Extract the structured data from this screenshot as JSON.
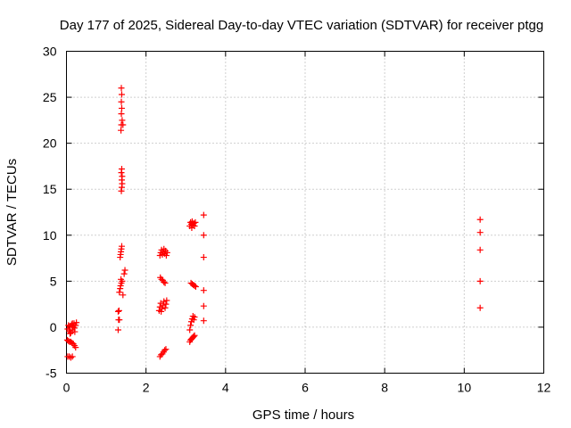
{
  "chart_data": {
    "type": "scatter",
    "title": "Day 177 of 2025, Sidereal Day-to-day VTEC variation (SDTVAR) for receiver ptgg",
    "xlabel": "GPS time / hours",
    "ylabel": "SDTVAR / TECUs",
    "xlim": [
      0,
      12
    ],
    "ylim": [
      -5,
      30
    ],
    "xticks": [
      0,
      2,
      4,
      6,
      8,
      10,
      12
    ],
    "yticks": [
      -5,
      0,
      5,
      10,
      15,
      20,
      25,
      30
    ],
    "grid": true,
    "marker": "+",
    "color": "#ff0000",
    "series": [
      {
        "name": "SDTVAR",
        "points": [
          [
            0.02,
            -1.4
          ],
          [
            0.05,
            -1.5
          ],
          [
            0.08,
            -1.6
          ],
          [
            0.11,
            -1.6
          ],
          [
            0.14,
            -1.7
          ],
          [
            0.17,
            -1.8
          ],
          [
            0.2,
            -2.0
          ],
          [
            0.23,
            -2.2
          ],
          [
            0.03,
            -3.2
          ],
          [
            0.07,
            -3.2
          ],
          [
            0.11,
            -3.3
          ],
          [
            0.15,
            -3.2
          ],
          [
            0.03,
            -0.2
          ],
          [
            0.05,
            0.2
          ],
          [
            0.07,
            -0.4
          ],
          [
            0.09,
            0.1
          ],
          [
            0.11,
            -0.6
          ],
          [
            0.13,
            0.3
          ],
          [
            0.15,
            -0.3
          ],
          [
            0.17,
            0.0
          ],
          [
            0.19,
            0.4
          ],
          [
            0.21,
            -0.5
          ],
          [
            0.23,
            0.2
          ],
          [
            0.25,
            0.5
          ],
          [
            0.09,
            -0.7
          ],
          [
            0.15,
            0.4
          ],
          [
            0.2,
            -0.1
          ],
          [
            1.3,
            -0.3
          ],
          [
            1.31,
            0.8
          ],
          [
            1.33,
            0.8
          ],
          [
            1.3,
            1.7
          ],
          [
            1.32,
            1.8
          ],
          [
            1.33,
            3.8
          ],
          [
            1.35,
            4.2
          ],
          [
            1.36,
            4.5
          ],
          [
            1.38,
            4.8
          ],
          [
            1.4,
            5.0
          ],
          [
            1.37,
            5.2
          ],
          [
            1.42,
            3.5
          ],
          [
            1.45,
            5.8
          ],
          [
            1.47,
            6.2
          ],
          [
            1.35,
            7.6
          ],
          [
            1.36,
            7.9
          ],
          [
            1.37,
            8.2
          ],
          [
            1.38,
            8.5
          ],
          [
            1.39,
            8.8
          ],
          [
            1.38,
            14.8
          ],
          [
            1.39,
            15.2
          ],
          [
            1.4,
            15.6
          ],
          [
            1.39,
            16.0
          ],
          [
            1.4,
            16.4
          ],
          [
            1.38,
            16.8
          ],
          [
            1.39,
            17.2
          ],
          [
            1.37,
            21.4
          ],
          [
            1.38,
            22.0
          ],
          [
            1.4,
            22.5
          ],
          [
            1.42,
            22.0
          ],
          [
            1.38,
            23.2
          ],
          [
            1.39,
            23.8
          ],
          [
            1.38,
            24.5
          ],
          [
            1.39,
            25.3
          ],
          [
            1.38,
            26.0
          ],
          [
            2.35,
            -3.2
          ],
          [
            2.38,
            -3.0
          ],
          [
            2.41,
            -2.9
          ],
          [
            2.44,
            -2.7
          ],
          [
            2.47,
            -2.5
          ],
          [
            2.5,
            -2.4
          ],
          [
            2.33,
            1.8
          ],
          [
            2.35,
            2.2
          ],
          [
            2.37,
            2.6
          ],
          [
            2.4,
            2.0
          ],
          [
            2.43,
            2.4
          ],
          [
            2.45,
            2.8
          ],
          [
            2.48,
            2.1
          ],
          [
            2.5,
            2.5
          ],
          [
            2.52,
            2.9
          ],
          [
            2.38,
            1.7
          ],
          [
            2.36,
            5.4
          ],
          [
            2.39,
            5.2
          ],
          [
            2.42,
            5.1
          ],
          [
            2.45,
            4.9
          ],
          [
            2.48,
            4.8
          ],
          [
            2.35,
            7.8
          ],
          [
            2.37,
            8.1
          ],
          [
            2.39,
            8.4
          ],
          [
            2.41,
            7.9
          ],
          [
            2.43,
            8.2
          ],
          [
            2.45,
            8.5
          ],
          [
            2.47,
            8.0
          ],
          [
            2.49,
            8.3
          ],
          [
            2.51,
            7.8
          ],
          [
            2.53,
            8.1
          ],
          [
            3.1,
            -1.6
          ],
          [
            3.12,
            -1.4
          ],
          [
            3.14,
            -1.3
          ],
          [
            3.16,
            -1.2
          ],
          [
            3.18,
            -1.1
          ],
          [
            3.2,
            -1.0
          ],
          [
            3.22,
            -0.9
          ],
          [
            3.1,
            -0.3
          ],
          [
            3.12,
            0.2
          ],
          [
            3.14,
            0.6
          ],
          [
            3.16,
            0.9
          ],
          [
            3.18,
            1.2
          ],
          [
            3.2,
            0.8
          ],
          [
            3.22,
            1.1
          ],
          [
            3.13,
            4.8
          ],
          [
            3.16,
            4.7
          ],
          [
            3.19,
            4.6
          ],
          [
            3.22,
            4.5
          ],
          [
            3.25,
            4.4
          ],
          [
            3.1,
            11.0
          ],
          [
            3.12,
            11.4
          ],
          [
            3.14,
            11.2
          ],
          [
            3.16,
            11.5
          ],
          [
            3.18,
            11.1
          ],
          [
            3.2,
            11.3
          ],
          [
            3.22,
            11.0
          ],
          [
            3.24,
            11.4
          ],
          [
            3.15,
            10.8
          ],
          [
            3.45,
            12.2
          ],
          [
            3.45,
            10.0
          ],
          [
            3.45,
            7.6
          ],
          [
            3.45,
            4.0
          ],
          [
            3.45,
            2.3
          ],
          [
            3.45,
            0.7
          ],
          [
            10.4,
            11.7
          ],
          [
            10.4,
            10.3
          ],
          [
            10.4,
            8.4
          ],
          [
            10.4,
            5.0
          ],
          [
            10.4,
            2.1
          ]
        ]
      }
    ]
  }
}
